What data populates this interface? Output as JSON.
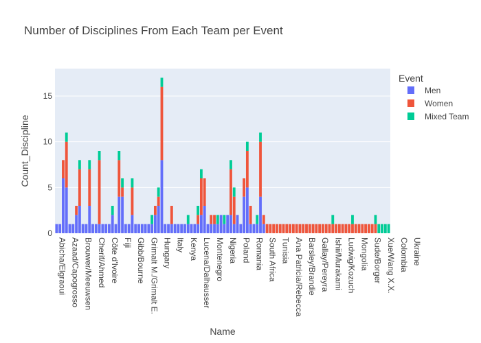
{
  "chart_data": {
    "type": "bar",
    "barmode": "stack",
    "title": "Number of Disciplines From Each Team per Event",
    "xlabel": "Name",
    "ylabel": "Count_Discipline",
    "ylim": [
      0,
      18
    ],
    "yticks": [
      0,
      5,
      10,
      15
    ],
    "grid": true,
    "legend_title": "Event",
    "legend_position": "right",
    "x_tick_labels": [
      "Abicha/Elgraoui",
      "Azaad/Capogrosso",
      "Brouwer/Meeuwsen",
      "Cherif/Ahmed",
      "Côte d'Ivoire",
      "Fiji",
      "Gibb/Bourne",
      "Grimalt M./Grimalt E.",
      "Hungary",
      "Italy",
      "Kenya",
      "Lucena/Dalhausser",
      "Montenegro",
      "Nigeria",
      "Poland",
      "Romania",
      "South Africa",
      "Tunisia",
      "Ana Patricia/Rebecca",
      "Barsley/Brandie",
      "Gallay/Pereyra",
      "Ishii/Murakami",
      "Ludwig/Kozuch",
      "Mongolia",
      "Sude/Borger",
      "Xue/Wang X.X.",
      "Colombia",
      "Ukraine"
    ],
    "series": [
      {
        "name": "Men",
        "color": "#636efa",
        "values": [
          1,
          1,
          6,
          5,
          1,
          1,
          2,
          3,
          1,
          1,
          3,
          1,
          1,
          1,
          1,
          1,
          1,
          2,
          1,
          4,
          4,
          1,
          1,
          2,
          1,
          1,
          1,
          1,
          1,
          1,
          2,
          3,
          8,
          1,
          1,
          1,
          1,
          1,
          1,
          1,
          1,
          1,
          1,
          1,
          2,
          3,
          1,
          1,
          1,
          1,
          2,
          1,
          2,
          2,
          1,
          2,
          1,
          4,
          5,
          1,
          1,
          1,
          4,
          1,
          0,
          0,
          0,
          0,
          0,
          0,
          0,
          0,
          0,
          0,
          0,
          0,
          0,
          0,
          0,
          0,
          0,
          0,
          0,
          0,
          0,
          0,
          0,
          0,
          0,
          0,
          0,
          0,
          0,
          0,
          0,
          0,
          0,
          0,
          0,
          0,
          0,
          0
        ]
      },
      {
        "name": "Women",
        "color": "#ef553b",
        "values": [
          0,
          0,
          2,
          5,
          0,
          0,
          1,
          4,
          0,
          0,
          4,
          0,
          0,
          7,
          0,
          0,
          0,
          0,
          0,
          4,
          1,
          0,
          0,
          3,
          0,
          0,
          0,
          0,
          0,
          0,
          1,
          1,
          8,
          0,
          0,
          2,
          0,
          0,
          0,
          0,
          0,
          0,
          0,
          1,
          4,
          3,
          0,
          1,
          1,
          0,
          0,
          0,
          0,
          5,
          3,
          0,
          0,
          2,
          4,
          2,
          0,
          0,
          6,
          1,
          1,
          1,
          1,
          1,
          1,
          1,
          1,
          1,
          1,
          1,
          1,
          1,
          1,
          1,
          1,
          1,
          1,
          1,
          1,
          1,
          1,
          1,
          1,
          1,
          1,
          1,
          1,
          1,
          1,
          1,
          1,
          1,
          1,
          1,
          0,
          0,
          0,
          0
        ]
      },
      {
        "name": "Mixed Team",
        "color": "#00cc96",
        "values": [
          0,
          0,
          0,
          1,
          0,
          0,
          0,
          1,
          0,
          0,
          1,
          0,
          0,
          1,
          0,
          0,
          0,
          1,
          0,
          1,
          1,
          0,
          0,
          1,
          0,
          0,
          0,
          0,
          0,
          1,
          0,
          1,
          1,
          0,
          0,
          0,
          0,
          0,
          0,
          0,
          1,
          0,
          0,
          1,
          1,
          0,
          0,
          0,
          0,
          1,
          0,
          1,
          0,
          1,
          1,
          0,
          0,
          0,
          1,
          0,
          0,
          1,
          1,
          0,
          0,
          0,
          0,
          0,
          0,
          0,
          0,
          0,
          0,
          0,
          0,
          0,
          0,
          0,
          0,
          0,
          0,
          0,
          0,
          0,
          1,
          0,
          0,
          0,
          0,
          0,
          1,
          0,
          0,
          0,
          0,
          0,
          0,
          1,
          1,
          1,
          1,
          1
        ]
      }
    ]
  }
}
